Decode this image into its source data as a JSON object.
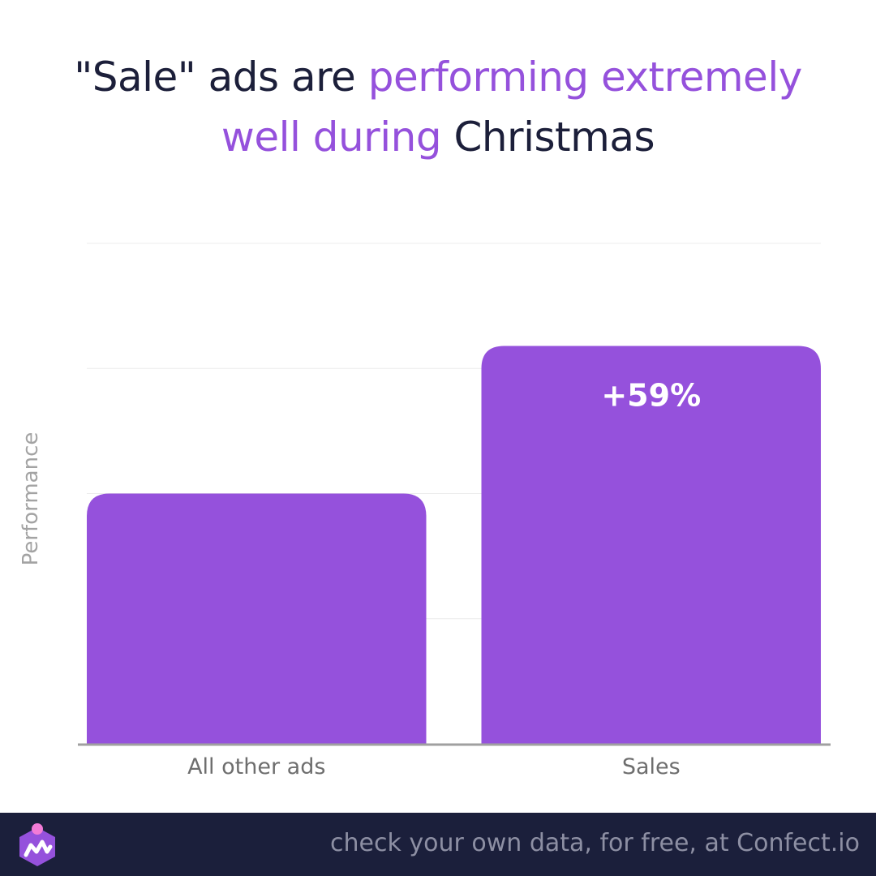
{
  "title": {
    "part1": "\"Sale\" ads are ",
    "part2": "performing extremely",
    "part3": "well during",
    "part4": " Christmas"
  },
  "colors": {
    "accent": "#9551dc",
    "bar": "#9551dc",
    "dark": "#1c1f3a",
    "footer_bg": "#1b1f3b",
    "axis_label": "#a3a3a3",
    "category_label": "#6e6e6e",
    "footer_text": "#8d8fa3"
  },
  "chart_data": {
    "type": "bar",
    "categories": [
      "All other ads",
      "Sales"
    ],
    "values": [
      100,
      159
    ],
    "data_labels": [
      "",
      "+59%"
    ],
    "xlabel": "",
    "ylabel": "Performance",
    "ylim": [
      0,
      200
    ],
    "grid": true
  },
  "footer": {
    "text": "check your own data, for free, at Confect.io",
    "logo_icon": "confect-logo-icon"
  }
}
